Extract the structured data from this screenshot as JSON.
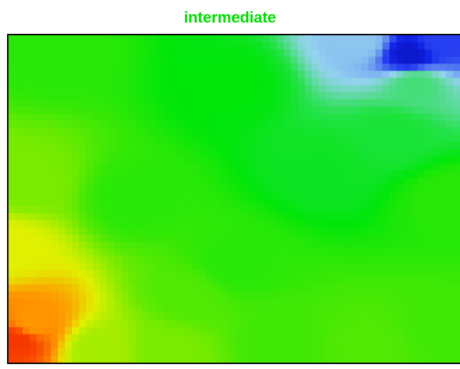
{
  "chart_data": {
    "type": "heatmap",
    "title": "intermediate",
    "title_color": "#00dd00",
    "grid": false,
    "legend": "none",
    "axes_visible": false,
    "colormap": "jet",
    "value_range": [
      0,
      1
    ],
    "anchors": [
      {
        "x": 0.02,
        "y": 0.07,
        "value": 0.98
      },
      {
        "x": 0.05,
        "y": 0.12,
        "value": 0.85
      },
      {
        "x": 0.0,
        "y": 0.35,
        "value": 0.72
      },
      {
        "x": 0.04,
        "y": 0.55,
        "value": 0.6
      },
      {
        "x": 0.2,
        "y": 0.04,
        "value": 0.65
      },
      {
        "x": 0.28,
        "y": 0.5,
        "value": 0.5
      },
      {
        "x": 0.35,
        "y": 0.04,
        "value": 0.6
      },
      {
        "x": 0.6,
        "y": 0.06,
        "value": 0.53
      },
      {
        "x": 0.8,
        "y": 0.05,
        "value": 0.55
      },
      {
        "x": 0.95,
        "y": 0.1,
        "value": 0.53
      },
      {
        "x": 0.5,
        "y": 0.85,
        "value": 0.45
      },
      {
        "x": 0.7,
        "y": 0.6,
        "value": 0.42
      },
      {
        "x": 0.85,
        "y": 0.7,
        "value": 0.4
      },
      {
        "x": 0.9,
        "y": 0.85,
        "value": 0.34
      },
      {
        "x": 0.89,
        "y": 0.94,
        "value": 0.06
      },
      {
        "x": 0.95,
        "y": 0.98,
        "value": 0.12
      },
      {
        "x": 0.78,
        "y": 0.98,
        "value": 0.24
      },
      {
        "x": 0.98,
        "y": 0.5,
        "value": 0.5
      },
      {
        "x": 0.1,
        "y": 0.95,
        "value": 0.5
      },
      {
        "x": 0.5,
        "y": 0.3,
        "value": 0.5
      },
      {
        "x": 0.4,
        "y": 0.2,
        "value": 0.55
      }
    ]
  }
}
